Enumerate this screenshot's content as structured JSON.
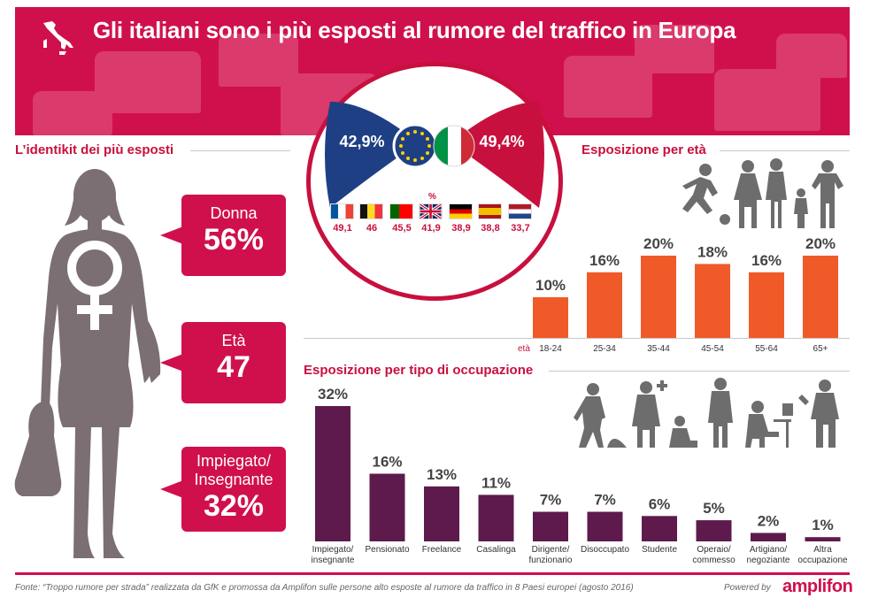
{
  "header": {
    "title": "Gli italiani sono i più esposti al rumore del traffico in Europa"
  },
  "comparison": {
    "eu_value": "42,9%",
    "it_value": "49,4%",
    "percent_mark": "%",
    "countries": [
      {
        "name": "Francia",
        "value": "49,1"
      },
      {
        "name": "Belgio",
        "value": "46"
      },
      {
        "name": "Portogallo",
        "value": "45,5"
      },
      {
        "name": "Regno Unito",
        "value": "41,9"
      },
      {
        "name": "Germania",
        "value": "38,9"
      },
      {
        "name": "Spagna",
        "value": "38,8"
      },
      {
        "name": "Paesi Bassi",
        "value": "33,7"
      }
    ]
  },
  "identikit": {
    "title": "L’identikit dei più esposti",
    "gender_label": "Donna",
    "gender_value": "56%",
    "age_label": "Età",
    "age_value": "47",
    "job_label_1": "Impiegato/",
    "job_label_2": "Insegnante",
    "job_value": "32%"
  },
  "chart_data": [
    {
      "type": "bar",
      "title": "Esposizione per età",
      "xlabel": "età",
      "categories": [
        "18-24",
        "25-34",
        "35-44",
        "45-54",
        "55-64",
        "65+"
      ],
      "values": [
        10,
        16,
        20,
        18,
        16,
        20
      ],
      "value_labels": [
        "10%",
        "16%",
        "20%",
        "18%",
        "16%",
        "20%"
      ],
      "ylim": [
        0,
        20
      ],
      "color": "#f05a28"
    },
    {
      "type": "bar",
      "title": "Esposizione per tipo di occupazione",
      "categories": [
        [
          "Impiegato/",
          "insegnante"
        ],
        [
          "Pensionato"
        ],
        [
          "Freelance"
        ],
        [
          "Casalinga"
        ],
        [
          "Dirigente/",
          "funzionario"
        ],
        [
          "Disoccupato"
        ],
        [
          "Studente"
        ],
        [
          "Operaio/",
          "commesso"
        ],
        [
          "Artigiano/",
          "negoziante"
        ],
        [
          "Altra",
          "occupazione"
        ]
      ],
      "values": [
        32,
        16,
        13,
        11,
        7,
        7,
        6,
        5,
        2,
        1
      ],
      "value_labels": [
        "32%",
        "16%",
        "13%",
        "11%",
        "7%",
        "7%",
        "6%",
        "5%",
        "2%",
        "1%"
      ],
      "ylim": [
        0,
        32
      ],
      "color": "#5e1a4c"
    }
  ],
  "footer": {
    "source": "Fonte: “Troppo rumore per strada” realizzata da GfK e promossa da Amplifon sulle persone alto esposte al rumore da traffico in 8 Paesi europei (agosto 2016)",
    "powered": "Powered by",
    "brand": "amplifon"
  },
  "colors": {
    "accent": "#d0104c",
    "eu_blue": "#1f3f84",
    "age_bar": "#f05a28",
    "job_bar": "#5e1a4c",
    "icon_gray": "#6d6d6d"
  }
}
